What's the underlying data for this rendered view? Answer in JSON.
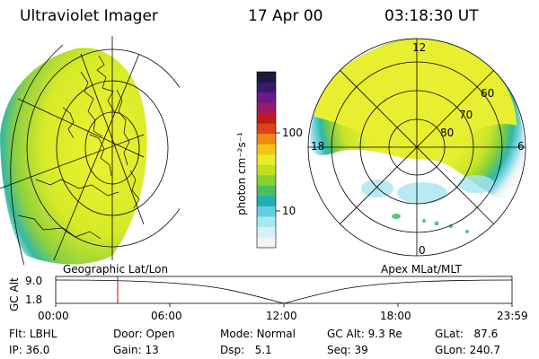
{
  "header": {
    "instrument": "Ultraviolet Imager",
    "date": "17 Apr 00",
    "time": "03:18:30 UT"
  },
  "colorbar": {
    "unit_label": "photon cm⁻²s⁻¹",
    "ticks": [
      "100",
      "10"
    ],
    "colors": [
      "#1a1a3a",
      "#3a1a6a",
      "#6a1a8a",
      "#9a1a6a",
      "#c41a1a",
      "#e0401a",
      "#f08a10",
      "#f2c418",
      "#e6ee20",
      "#c0e020",
      "#88d030",
      "#48c060",
      "#20b0b0",
      "#60d0e0",
      "#a8e8f0",
      "#d8f0f4",
      "#f0f4f4"
    ]
  },
  "maps": {
    "left_caption": "Geographic Lat/Lon",
    "right_caption": "Apex MLat/MLT",
    "polar": {
      "mlt_labels": [
        "12",
        "18",
        "6",
        "0"
      ],
      "mlat_labels": [
        "60",
        "70",
        "80"
      ]
    }
  },
  "altitude_plot": {
    "axis_title": "GC Alt",
    "y_ticks": [
      "9.0",
      "1.8"
    ],
    "x_ticks": [
      "00:00",
      "06:00",
      "12:00",
      "18:00",
      "23:59"
    ],
    "marker_time": "03:18",
    "marker_color": "#cc0000"
  },
  "info": {
    "filter": {
      "label": "Flt:",
      "value": "LBHL"
    },
    "ip": {
      "label": "IP:",
      "value": "36.0"
    },
    "door": {
      "label": "Door:",
      "value": "Open"
    },
    "gain": {
      "label": "Gain:",
      "value": "13"
    },
    "mode": {
      "label": "Mode:",
      "value": "Normal"
    },
    "dsp": {
      "label": "Dsp:",
      "value": "5.1"
    },
    "gc_alt": {
      "label": "GC Alt:",
      "value": "9.3 Re"
    },
    "seq": {
      "label": "Seq:",
      "value": "39"
    },
    "glat": {
      "label": "GLat:",
      "value": "87.6"
    },
    "glon": {
      "label": "GLon:",
      "value": "240.7"
    }
  }
}
